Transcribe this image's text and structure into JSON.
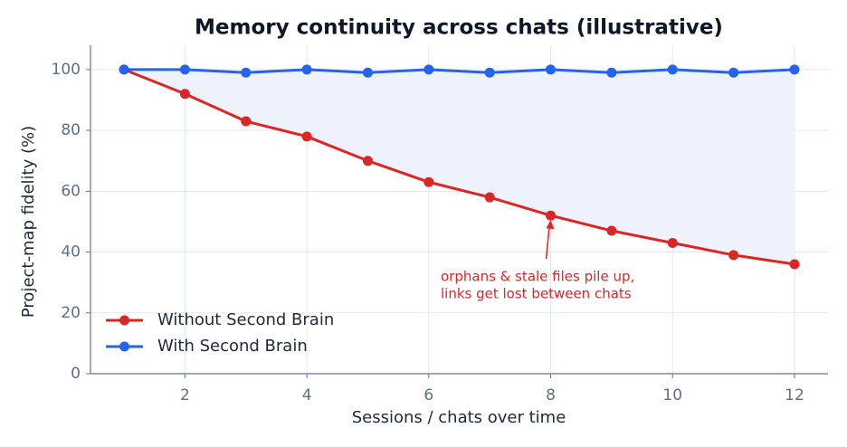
{
  "chart_data": {
    "type": "line",
    "title": "Memory continuity across chats  (illustrative)",
    "x_label": "Sessions / chats over time",
    "y_label": "Project-map fidelity (%)",
    "x": [
      1,
      2,
      3,
      4,
      5,
      6,
      7,
      8,
      9,
      10,
      11,
      12
    ],
    "series": [
      {
        "name": "Without Second Brain",
        "color": "#dc2626",
        "values": [
          100,
          92,
          83,
          78,
          70,
          63,
          58,
          52,
          47,
          43,
          39,
          36
        ]
      },
      {
        "name": "With Second Brain",
        "color": "#2563eb",
        "values": [
          100,
          100,
          99,
          100,
          99,
          100,
          99,
          100,
          99,
          100,
          99,
          100
        ]
      }
    ],
    "fill_between_color": "#eef2fd",
    "xlim": [
      0.45,
      12.55
    ],
    "ylim": [
      0,
      108
    ],
    "xticks": [
      2,
      4,
      6,
      8,
      10,
      12
    ],
    "yticks": [
      0,
      20,
      40,
      60,
      80,
      100
    ],
    "grid": true,
    "legend_position": "lower left",
    "annotation": {
      "lines": [
        "orphans & stale files pile up,",
        "links get lost between chats"
      ],
      "x": 8,
      "y": 52
    }
  }
}
